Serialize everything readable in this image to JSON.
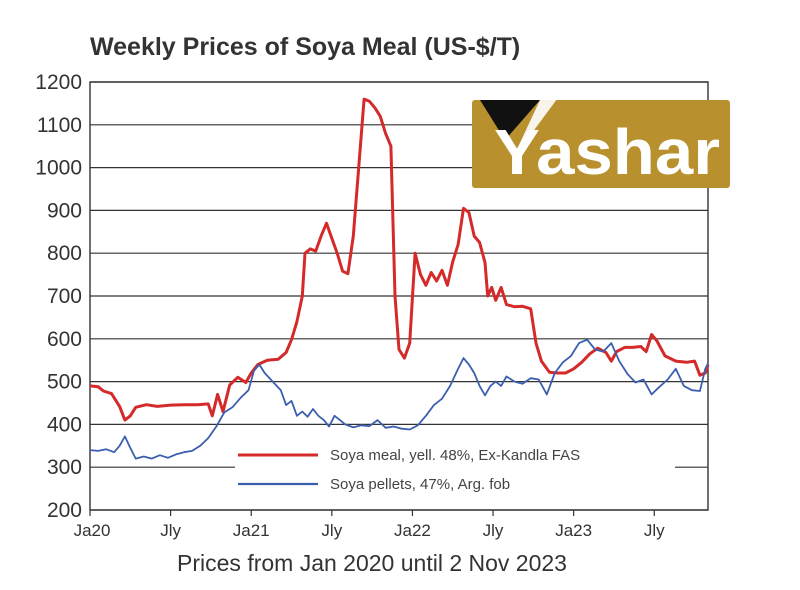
{
  "colors": {
    "soya_meal": "#d42a2a",
    "soya_pellets": "#3b5fae",
    "logo_gold": "#b8912e",
    "logo_text": "#ffffff"
  },
  "logo": {
    "text": "Yashar",
    "icon": "yashar-logo-icon"
  },
  "chart_data": {
    "type": "line",
    "title": "Weekly Prices of Soya Meal  (US-$/T)",
    "xlabel": "Prices from Jan 2020 until 2 Nov 2023",
    "ylabel": "",
    "ylim": [
      200,
      1200
    ],
    "yticks": [
      200,
      300,
      400,
      500,
      600,
      700,
      800,
      900,
      1000,
      1100,
      1200
    ],
    "xlim": [
      0,
      46
    ],
    "xticks": [
      {
        "label": "Ja20",
        "x": 0
      },
      {
        "label": "Jly",
        "x": 6
      },
      {
        "label": "Ja21",
        "x": 12
      },
      {
        "label": "Jly",
        "x": 18
      },
      {
        "label": "Ja22",
        "x": 24
      },
      {
        "label": "Jly",
        "x": 30
      },
      {
        "label": "Ja23",
        "x": 36
      },
      {
        "label": "Jly",
        "x": 42
      }
    ],
    "grid": "horizontal",
    "legend_position": "bottom-center",
    "series": [
      {
        "name": "Soya meal, yell. 48%, Ex-Kandla FAS",
        "color": "#d42a2a",
        "points": [
          [
            0,
            490
          ],
          [
            0.6,
            488
          ],
          [
            1.0,
            478
          ],
          [
            1.6,
            472
          ],
          [
            2.2,
            442
          ],
          [
            2.6,
            410
          ],
          [
            3.0,
            420
          ],
          [
            3.4,
            440
          ],
          [
            4.2,
            446
          ],
          [
            5.0,
            442
          ],
          [
            6.0,
            445
          ],
          [
            7.0,
            446
          ],
          [
            8.0,
            446
          ],
          [
            8.8,
            448
          ],
          [
            9.1,
            420
          ],
          [
            9.5,
            470
          ],
          [
            9.9,
            430
          ],
          [
            10.4,
            492
          ],
          [
            11.0,
            510
          ],
          [
            11.6,
            498
          ],
          [
            12.0,
            520
          ],
          [
            12.5,
            540
          ],
          [
            13.2,
            550
          ],
          [
            14.0,
            552
          ],
          [
            14.6,
            568
          ],
          [
            15.0,
            598
          ],
          [
            15.4,
            640
          ],
          [
            15.8,
            700
          ],
          [
            16.0,
            800
          ],
          [
            16.4,
            810
          ],
          [
            16.8,
            805
          ],
          [
            17.2,
            840
          ],
          [
            17.6,
            870
          ],
          [
            18.0,
            835
          ],
          [
            18.4,
            800
          ],
          [
            18.8,
            758
          ],
          [
            19.2,
            752
          ],
          [
            19.6,
            840
          ],
          [
            20.0,
            1000
          ],
          [
            20.4,
            1160
          ],
          [
            20.8,
            1155
          ],
          [
            21.2,
            1140
          ],
          [
            21.6,
            1120
          ],
          [
            22.0,
            1080
          ],
          [
            22.4,
            1050
          ],
          [
            22.7,
            700
          ],
          [
            23.0,
            575
          ],
          [
            23.4,
            555
          ],
          [
            23.8,
            590
          ],
          [
            24.2,
            800
          ],
          [
            24.6,
            750
          ],
          [
            25.0,
            725
          ],
          [
            25.4,
            755
          ],
          [
            25.8,
            735
          ],
          [
            26.2,
            760
          ],
          [
            26.6,
            725
          ],
          [
            27.0,
            780
          ],
          [
            27.4,
            820
          ],
          [
            27.8,
            905
          ],
          [
            28.2,
            895
          ],
          [
            28.6,
            840
          ],
          [
            29.0,
            825
          ],
          [
            29.4,
            778
          ],
          [
            29.6,
            700
          ],
          [
            29.9,
            720
          ],
          [
            30.2,
            690
          ],
          [
            30.6,
            720
          ],
          [
            31.0,
            680
          ],
          [
            31.6,
            675
          ],
          [
            32.2,
            676
          ],
          [
            32.8,
            670
          ],
          [
            33.2,
            590
          ],
          [
            33.6,
            548
          ],
          [
            34.2,
            522
          ],
          [
            34.8,
            520
          ],
          [
            35.4,
            520
          ],
          [
            36.0,
            530
          ],
          [
            36.6,
            545
          ],
          [
            37.2,
            565
          ],
          [
            37.8,
            578
          ],
          [
            38.4,
            568
          ],
          [
            38.8,
            548
          ],
          [
            39.2,
            570
          ],
          [
            39.8,
            580
          ],
          [
            40.4,
            580
          ],
          [
            41.0,
            582
          ],
          [
            41.4,
            570
          ],
          [
            41.8,
            610
          ],
          [
            42.2,
            595
          ],
          [
            42.8,
            560
          ],
          [
            43.6,
            548
          ],
          [
            44.4,
            545
          ],
          [
            45.0,
            548
          ],
          [
            45.4,
            515
          ],
          [
            45.8,
            520
          ],
          [
            46.0,
            540
          ]
        ]
      },
      {
        "name": "Soya pellets, 47%, Arg. fob",
        "color": "#3b5fae",
        "points": [
          [
            0,
            340
          ],
          [
            0.6,
            338
          ],
          [
            1.2,
            342
          ],
          [
            1.8,
            335
          ],
          [
            2.2,
            350
          ],
          [
            2.6,
            372
          ],
          [
            3.0,
            345
          ],
          [
            3.4,
            320
          ],
          [
            4.0,
            325
          ],
          [
            4.6,
            320
          ],
          [
            5.2,
            328
          ],
          [
            5.8,
            322
          ],
          [
            6.4,
            330
          ],
          [
            7.0,
            335
          ],
          [
            7.6,
            338
          ],
          [
            8.2,
            350
          ],
          [
            8.8,
            368
          ],
          [
            9.4,
            395
          ],
          [
            10.0,
            428
          ],
          [
            10.6,
            440
          ],
          [
            11.2,
            462
          ],
          [
            11.8,
            480
          ],
          [
            12.2,
            525
          ],
          [
            12.6,
            540
          ],
          [
            13.0,
            520
          ],
          [
            13.6,
            500
          ],
          [
            14.2,
            480
          ],
          [
            14.6,
            445
          ],
          [
            15.0,
            455
          ],
          [
            15.4,
            420
          ],
          [
            15.8,
            430
          ],
          [
            16.2,
            418
          ],
          [
            16.6,
            436
          ],
          [
            17.0,
            420
          ],
          [
            17.4,
            410
          ],
          [
            17.8,
            395
          ],
          [
            18.2,
            420
          ],
          [
            18.6,
            410
          ],
          [
            19.0,
            400
          ],
          [
            19.6,
            393
          ],
          [
            20.2,
            398
          ],
          [
            20.8,
            396
          ],
          [
            21.4,
            410
          ],
          [
            22.0,
            392
          ],
          [
            22.6,
            395
          ],
          [
            23.2,
            390
          ],
          [
            23.8,
            388
          ],
          [
            24.4,
            398
          ],
          [
            25.0,
            420
          ],
          [
            25.6,
            445
          ],
          [
            26.2,
            460
          ],
          [
            26.8,
            490
          ],
          [
            27.4,
            530
          ],
          [
            27.8,
            555
          ],
          [
            28.2,
            540
          ],
          [
            28.6,
            520
          ],
          [
            29.0,
            490
          ],
          [
            29.4,
            468
          ],
          [
            29.8,
            490
          ],
          [
            30.2,
            500
          ],
          [
            30.6,
            490
          ],
          [
            31.0,
            512
          ],
          [
            31.6,
            500
          ],
          [
            32.2,
            495
          ],
          [
            32.8,
            508
          ],
          [
            33.4,
            505
          ],
          [
            34.0,
            470
          ],
          [
            34.6,
            520
          ],
          [
            35.2,
            545
          ],
          [
            35.8,
            560
          ],
          [
            36.4,
            590
          ],
          [
            37.0,
            598
          ],
          [
            37.6,
            575
          ],
          [
            38.2,
            570
          ],
          [
            38.8,
            590
          ],
          [
            39.4,
            548
          ],
          [
            40.0,
            518
          ],
          [
            40.6,
            498
          ],
          [
            41.2,
            505
          ],
          [
            41.8,
            470
          ],
          [
            42.4,
            488
          ],
          [
            43.0,
            505
          ],
          [
            43.6,
            530
          ],
          [
            44.2,
            490
          ],
          [
            44.8,
            480
          ],
          [
            45.4,
            478
          ],
          [
            45.8,
            530
          ],
          [
            46.0,
            542
          ]
        ]
      }
    ]
  }
}
